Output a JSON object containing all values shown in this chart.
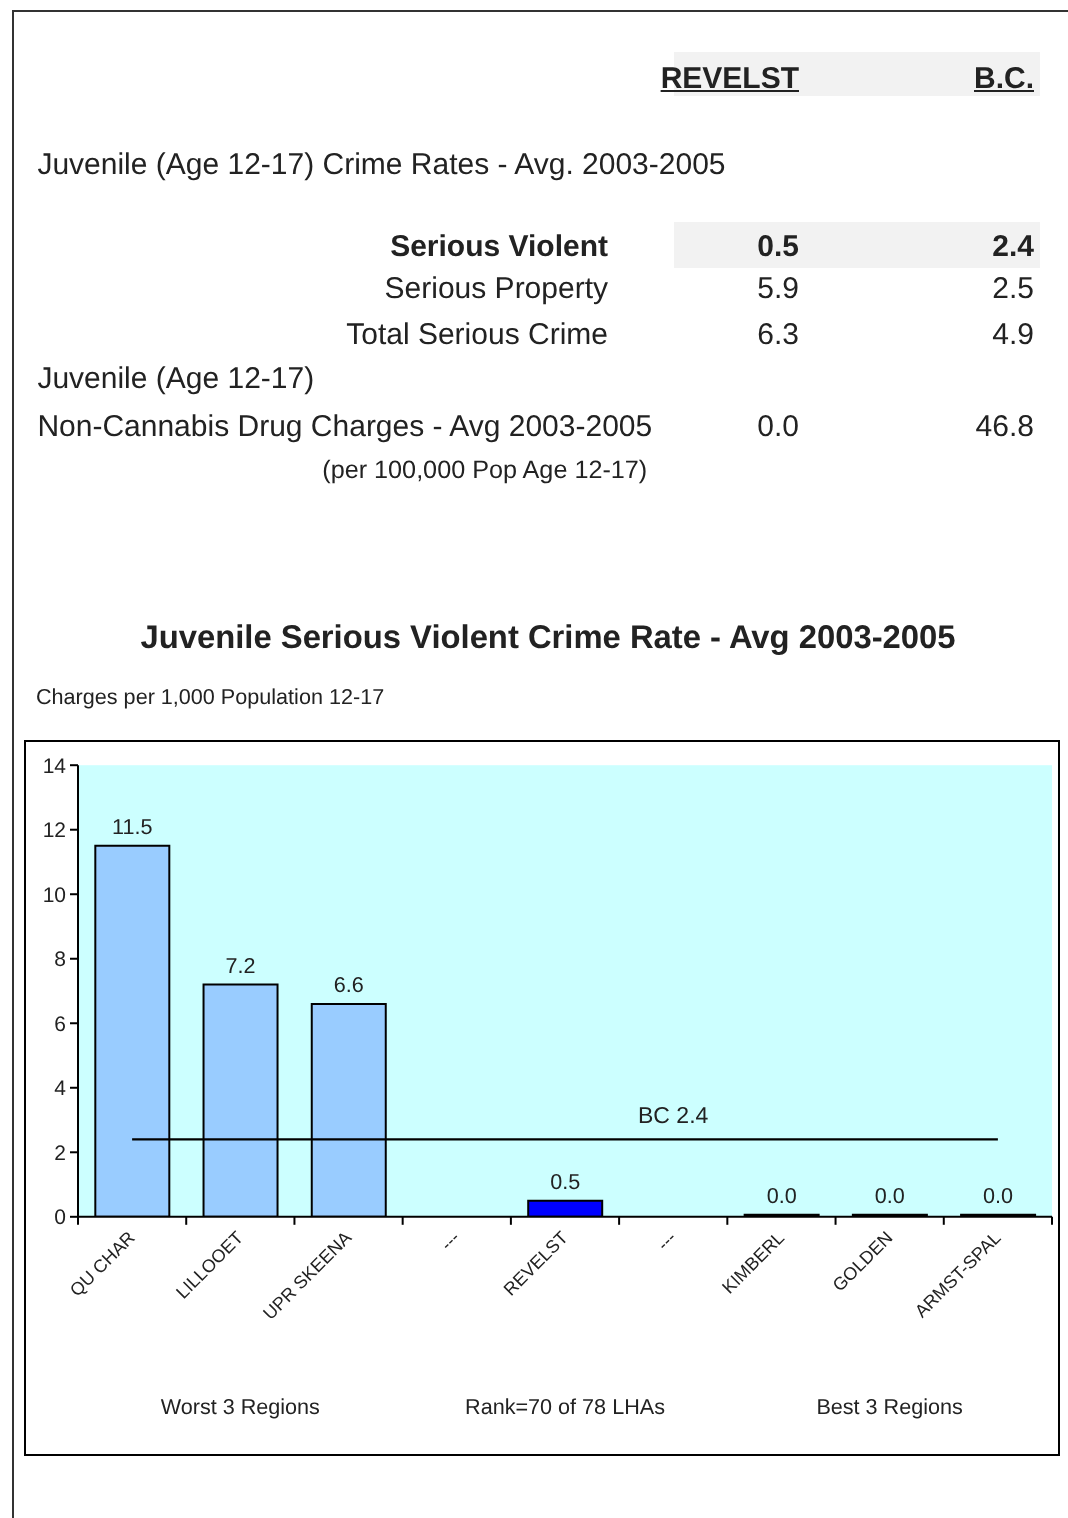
{
  "chart_data": [
    {
      "type": "other",
      "annotations": [
        "REVELST",
        "B.C.",
        "Juvenile (Age 12-17) Crime Rates - Avg. 2003-2005",
        "Serious Violent",
        "0.5",
        "2.4",
        "Serious Property",
        "5.9",
        "2.5",
        "Total Serious Crime",
        "6.3",
        "4.9",
        "Juvenile (Age 12-17)",
        "Non-Cannabis Drug Charges - Avg 2003-2005",
        "0.0",
        "46.8",
        "(per 100,000 Pop Age 12-17)"
      ]
    },
    {
      "type": "bar",
      "title": "Juvenile Serious Violent Crime Rate - Avg 2003-2005",
      "ylabel": "Charges per 1,000 Population 12-17",
      "categories": [
        "QU CHAR",
        "LILLOOET",
        "UPR SKEENA",
        "---",
        "REVELST",
        "---",
        "KIMBERL",
        "GOLDEN",
        "ARMST-SPAL"
      ],
      "values": [
        11.5,
        7.2,
        6.6,
        null,
        0.5,
        null,
        0.0,
        0.0,
        0.0
      ],
      "colors": [
        "#99ccff",
        "#99ccff",
        "#99ccff",
        "#99ccff",
        "#0000ff",
        "#99ccff",
        "#99ccff",
        "#99ccff",
        "#99ccff"
      ],
      "value_labels": [
        "11.5",
        "7.2",
        "6.6",
        null,
        "0.5",
        null,
        "0.0",
        "0.0",
        "0.0"
      ],
      "ylim": [
        0,
        14
      ],
      "yticks": [
        0,
        2,
        4,
        6,
        8,
        10,
        12,
        14
      ],
      "ref_lines": [
        {
          "axis": "y",
          "value": 2.4,
          "label": "BC 2.4",
          "color": "#000000"
        }
      ],
      "annotations": [
        "Worst 3 Regions",
        "Rank=70 of 78 LHAs",
        "Best 3 Regions"
      ]
    }
  ]
}
